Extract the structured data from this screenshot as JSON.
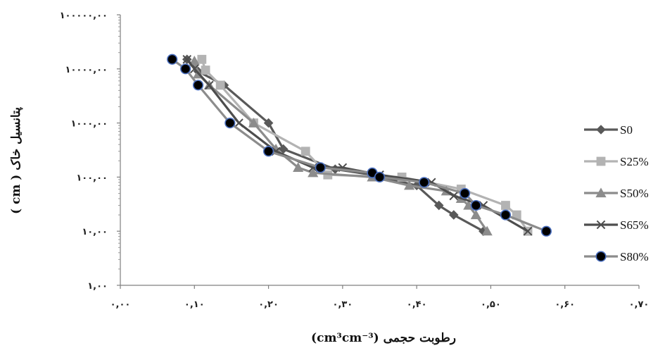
{
  "chart_data": {
    "type": "line",
    "xlabel": "رطوبت حجمی (cm³cm⁻³)",
    "ylabel": "پتانسیل خاک ( cm )",
    "xlim": [
      0,
      0.7
    ],
    "ylim": [
      1,
      100000
    ],
    "yscale": "log",
    "x_ticks": [
      0,
      0.1,
      0.2,
      0.3,
      0.4,
      0.5,
      0.6,
      0.7
    ],
    "x_tick_labels": [
      "۰,۰۰",
      "۰,۱۰",
      "۰,۲۰",
      "۰,۳۰",
      "۰,۴۰",
      "۰,۵۰",
      "۰,۶۰",
      "۰,۷۰"
    ],
    "y_ticks": [
      1,
      10,
      100,
      1000,
      10000,
      100000
    ],
    "y_tick_labels": [
      "۱,۰۰",
      "۱۰,۰۰",
      "۱۰۰,۰۰",
      "۱۰۰۰,۰۰",
      "۱۰۰۰۰,۰۰",
      "۱۰۰۰۰۰,۰۰"
    ],
    "legend_position": "right",
    "series": [
      {
        "name": "S0",
        "marker": "diamond",
        "color": "#595959",
        "points": [
          [
            0.09,
            15000
          ],
          [
            0.105,
            9000
          ],
          [
            0.14,
            5000
          ],
          [
            0.2,
            1000
          ],
          [
            0.22,
            330
          ],
          [
            0.29,
            140
          ],
          [
            0.34,
            110
          ],
          [
            0.4,
            70
          ],
          [
            0.43,
            30
          ],
          [
            0.45,
            20
          ],
          [
            0.49,
            10
          ]
        ]
      },
      {
        "name": "S25%",
        "marker": "square",
        "color": "#b3b3b3",
        "points": [
          [
            0.11,
            15000
          ],
          [
            0.115,
            9500
          ],
          [
            0.135,
            5000
          ],
          [
            0.18,
            1000
          ],
          [
            0.25,
            300
          ],
          [
            0.28,
            110
          ],
          [
            0.38,
            100
          ],
          [
            0.46,
            60
          ],
          [
            0.52,
            30
          ],
          [
            0.535,
            20
          ],
          [
            0.55,
            10
          ]
        ]
      },
      {
        "name": "S50%",
        "marker": "triangle",
        "color": "#8c8c8c",
        "points": [
          [
            0.1,
            14000
          ],
          [
            0.105,
            8000
          ],
          [
            0.12,
            5000
          ],
          [
            0.18,
            1000
          ],
          [
            0.21,
            330
          ],
          [
            0.24,
            150
          ],
          [
            0.26,
            120
          ],
          [
            0.34,
            100
          ],
          [
            0.39,
            70
          ],
          [
            0.44,
            55
          ],
          [
            0.46,
            40
          ],
          [
            0.47,
            30
          ],
          [
            0.48,
            20
          ],
          [
            0.495,
            10
          ]
        ]
      },
      {
        "name": "S65%",
        "marker": "x",
        "color": "#4d4d4d",
        "points": [
          [
            0.09,
            15000
          ],
          [
            0.1,
            10000
          ],
          [
            0.12,
            5000
          ],
          [
            0.16,
            1000
          ],
          [
            0.21,
            300
          ],
          [
            0.26,
            150
          ],
          [
            0.3,
            150
          ],
          [
            0.35,
            110
          ],
          [
            0.42,
            80
          ],
          [
            0.45,
            45
          ],
          [
            0.49,
            30
          ],
          [
            0.55,
            10
          ]
        ]
      },
      {
        "name": "S80%",
        "marker": "circle",
        "color": "#8c8c8c",
        "points": [
          [
            0.07,
            15000
          ],
          [
            0.088,
            10000
          ],
          [
            0.105,
            5000
          ],
          [
            0.148,
            1000
          ],
          [
            0.2,
            300
          ],
          [
            0.27,
            150
          ],
          [
            0.34,
            120
          ],
          [
            0.35,
            100
          ],
          [
            0.41,
            80
          ],
          [
            0.465,
            50
          ],
          [
            0.48,
            30
          ],
          [
            0.52,
            20
          ],
          [
            0.575,
            10
          ]
        ]
      }
    ]
  }
}
